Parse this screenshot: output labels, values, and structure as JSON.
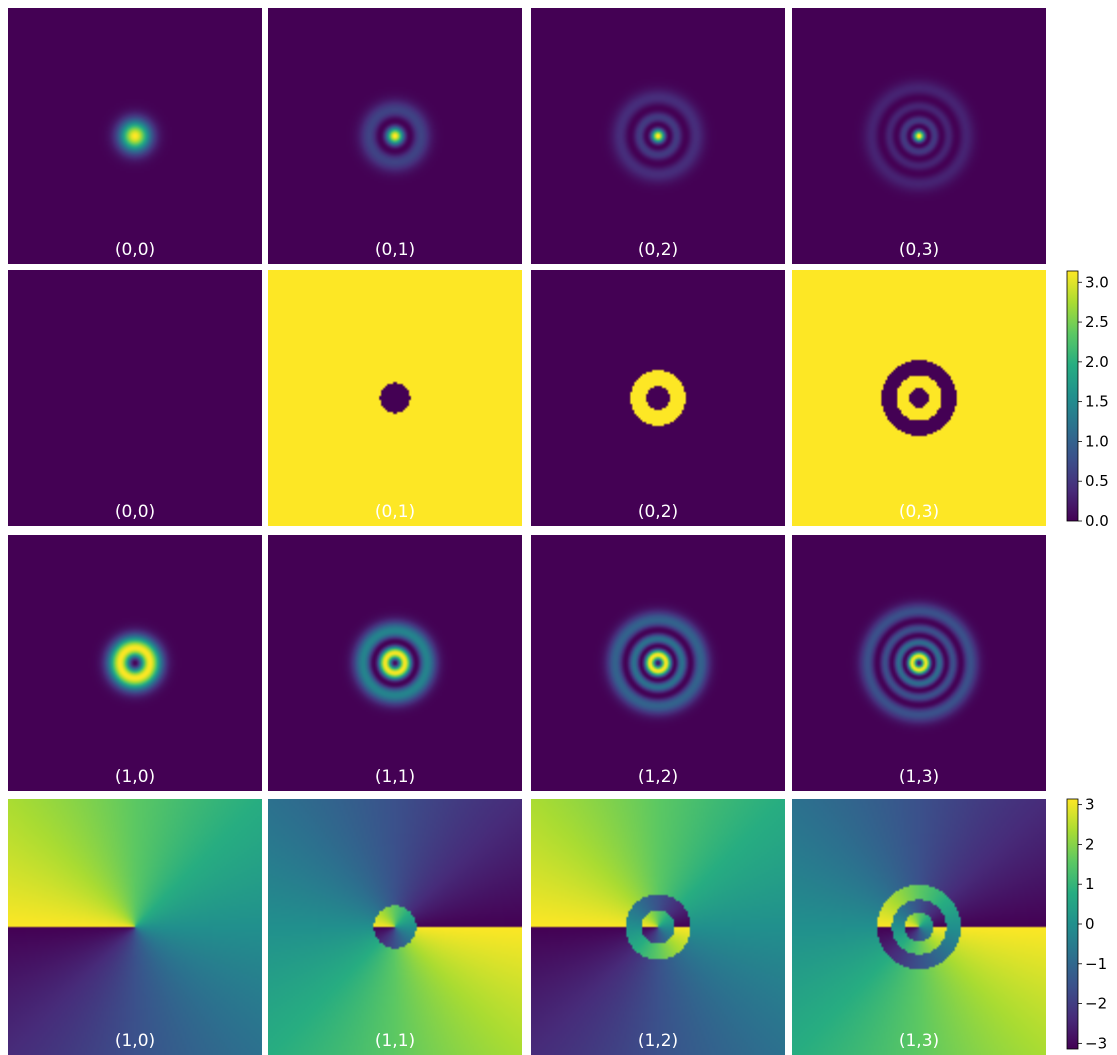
{
  "chart_data": {
    "type": "heatmap",
    "description_rows": [
      {
        "row": 0,
        "kind": "intensity",
        "labels": [
          "(0,0)",
          "(0,1)",
          "(0,2)",
          "(0,3)"
        ],
        "colorbar": null
      },
      {
        "row": 1,
        "kind": "phase",
        "labels": [
          "(0,0)",
          "(0,1)",
          "(0,2)",
          "(0,3)"
        ],
        "colorbar": "cb_top"
      },
      {
        "row": 2,
        "kind": "intensity",
        "labels": [
          "(1,0)",
          "(1,1)",
          "(1,2)",
          "(1,3)"
        ],
        "colorbar": null
      },
      {
        "row": 3,
        "kind": "phase",
        "labels": [
          "(1,0)",
          "(1,1)",
          "(1,2)",
          "(1,3)"
        ],
        "colorbar": "cb_bottom"
      }
    ],
    "panels": [
      {
        "label": "(0,0)",
        "kind": "intensity",
        "l": 0,
        "p": 0
      },
      {
        "label": "(0,1)",
        "kind": "intensity",
        "l": 0,
        "p": 1
      },
      {
        "label": "(0,2)",
        "kind": "intensity",
        "l": 0,
        "p": 2
      },
      {
        "label": "(0,3)",
        "kind": "intensity",
        "l": 0,
        "p": 3
      },
      {
        "label": "(0,0)",
        "kind": "phase",
        "l": 0,
        "p": 0
      },
      {
        "label": "(0,1)",
        "kind": "phase",
        "l": 0,
        "p": 1
      },
      {
        "label": "(0,2)",
        "kind": "phase",
        "l": 0,
        "p": 2
      },
      {
        "label": "(0,3)",
        "kind": "phase",
        "l": 0,
        "p": 3
      },
      {
        "label": "(1,0)",
        "kind": "intensity",
        "l": 1,
        "p": 0
      },
      {
        "label": "(1,1)",
        "kind": "intensity",
        "l": 1,
        "p": 1
      },
      {
        "label": "(1,2)",
        "kind": "intensity",
        "l": 1,
        "p": 2
      },
      {
        "label": "(1,3)",
        "kind": "intensity",
        "l": 1,
        "p": 3
      },
      {
        "label": "(1,0)",
        "kind": "phase",
        "l": 1,
        "p": 0
      },
      {
        "label": "(1,1)",
        "kind": "phase",
        "l": 1,
        "p": 1
      },
      {
        "label": "(1,2)",
        "kind": "phase",
        "l": 1,
        "p": 2
      },
      {
        "label": "(1,3)",
        "kind": "phase",
        "l": 1,
        "p": 3
      }
    ],
    "colorbars": {
      "cb_top": {
        "range": [
          0.0,
          3.14159
        ],
        "ticks": [
          0.0,
          0.5,
          1.0,
          1.5,
          2.0,
          2.5,
          3.0
        ],
        "tick_labels": [
          "0.0",
          "0.5",
          "1.0",
          "1.5",
          "2.0",
          "2.5",
          "3.0"
        ]
      },
      "cb_bottom": {
        "range": [
          -3.14159,
          3.14159
        ],
        "ticks": [
          -3,
          -2,
          -1,
          0,
          1,
          2,
          3
        ],
        "tick_labels": [
          "−3",
          "−2",
          "−1",
          "0",
          "1",
          "2",
          "3"
        ]
      }
    },
    "colormap": "viridis",
    "grid": false
  }
}
